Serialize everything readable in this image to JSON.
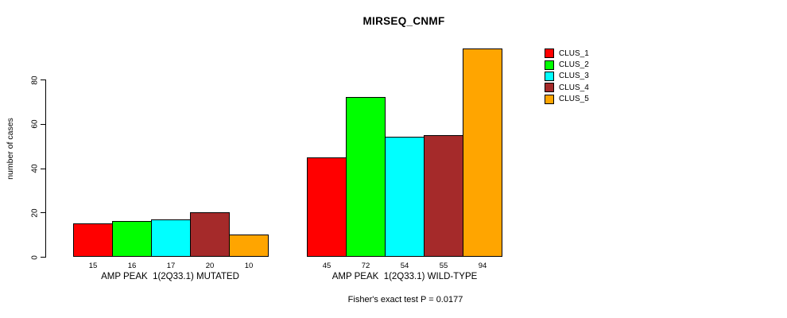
{
  "chart_data": {
    "type": "bar",
    "title": "MIRSEQ_CNMF",
    "ylabel": "number of cases",
    "categories": [
      "AMP PEAK  1(2Q33.1) MUTATED",
      "AMP PEAK  1(2Q33.1) WILD-TYPE"
    ],
    "series": [
      {
        "name": "CLUS_1",
        "color": "#FF0000",
        "values": [
          15,
          45
        ]
      },
      {
        "name": "CLUS_2",
        "color": "#00FF00",
        "values": [
          16,
          72
        ]
      },
      {
        "name": "CLUS_3",
        "color": "#00FFFF",
        "values": [
          17,
          54
        ]
      },
      {
        "name": "CLUS_4",
        "color": "#A52A2A",
        "values": [
          20,
          55
        ]
      },
      {
        "name": "CLUS_5",
        "color": "#FFA500",
        "values": [
          10,
          94
        ]
      }
    ],
    "yticks": [
      0,
      20,
      40,
      60,
      80
    ],
    "ylim": [
      0,
      80
    ],
    "show_bar_values": true,
    "grid": false,
    "legend_position": "right",
    "annotation": "Fisher's exact test P = 0.0177"
  }
}
